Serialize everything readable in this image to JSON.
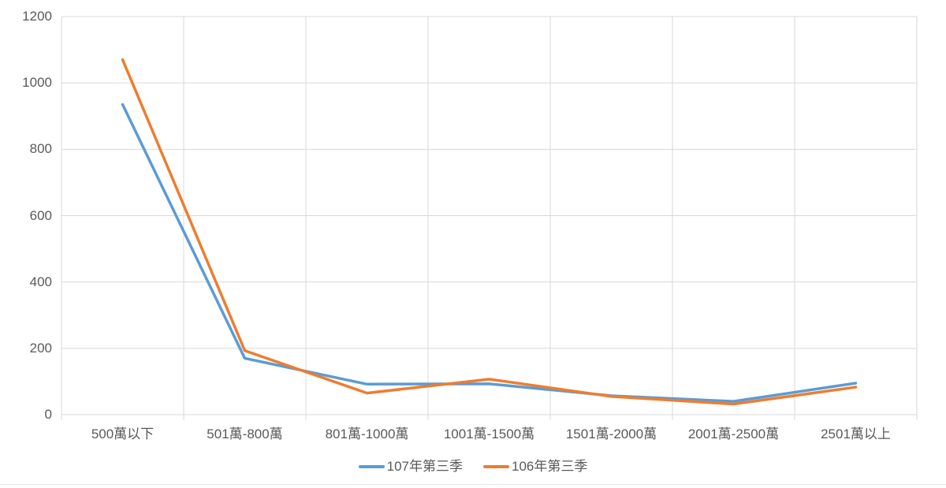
{
  "chart_data": {
    "type": "line",
    "title": "",
    "xlabel": "",
    "ylabel": "",
    "categories": [
      "500萬以下",
      "501萬-800萬",
      "801萬-1000萬",
      "1001萬-1500萬",
      "1501萬-2000萬",
      "2001萬-2500萬",
      "2501萬以上"
    ],
    "series": [
      {
        "name": "107年第三季",
        "color": "#5B9BD5",
        "values": [
          935,
          170,
          92,
          93,
          57,
          40,
          95
        ]
      },
      {
        "name": "106年第三季",
        "color": "#ED7D31",
        "values": [
          1070,
          193,
          65,
          107,
          55,
          32,
          83
        ]
      }
    ],
    "ylim": [
      0,
      1200
    ],
    "y_tick_step": 200,
    "y_tick_labels": [
      "0",
      "200",
      "400",
      "600",
      "800",
      "1000",
      "1200"
    ],
    "grid": true,
    "legend_position": "bottom",
    "colors": {
      "gridline": "#D9D9D9",
      "axis": "#D9D9D9",
      "tick_label": "#595959",
      "background": "#FFFFFF"
    }
  }
}
